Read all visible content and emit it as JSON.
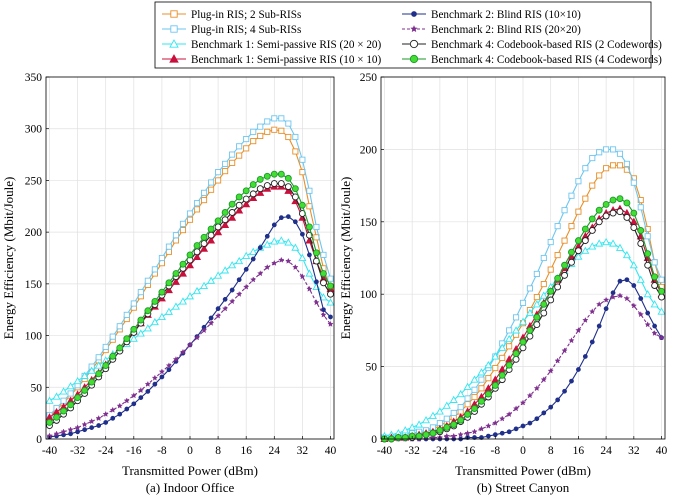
{
  "legend": {
    "entries": [
      {
        "label": "Plug-in RIS; 2 Sub-RISs",
        "color": "#E8902A",
        "marker": "square",
        "fill": "none",
        "dash": "",
        "col": 0,
        "row": 0
      },
      {
        "label": "Plug-in RIS; 4 Sub-RISs",
        "color": "#6EC6F0",
        "marker": "square",
        "fill": "none",
        "dash": "",
        "col": 0,
        "row": 1
      },
      {
        "label": "Benchmark 1: Semi-passive RIS (20 × 20)",
        "color": "#33E6F0",
        "marker": "triangle",
        "fill": "none",
        "dash": "",
        "col": 0,
        "row": 2
      },
      {
        "label": "Benchmark 1: Semi-passive RIS (10 × 10)",
        "color": "#C8103C",
        "marker": "triangle",
        "fill": "#C8103C",
        "dash": "",
        "col": 0,
        "row": 3
      },
      {
        "label": "Benchmark 2: Blind RIS (10×10)",
        "color": "#1F2F8A",
        "marker": "dot",
        "fill": "#1F2F8A",
        "dash": "",
        "col": 1,
        "row": 0
      },
      {
        "label": "Benchmark 2: Blind RIS (20×20)",
        "color": "#7E2F8E",
        "marker": "star",
        "fill": "#7E2F8E",
        "dash": "3,2",
        "col": 1,
        "row": 1
      },
      {
        "label": "Benchmark 4: Codebook-based RIS (2 Codewords)",
        "color": "#222222",
        "marker": "circle",
        "fill": "none",
        "dash": "",
        "col": 1,
        "row": 2
      },
      {
        "label": "Benchmark 4: Codebook-based RIS (4 Codewords)",
        "color": "#1A9A2A",
        "marker": "circle",
        "fill": "#44DD33",
        "dash": "",
        "col": 1,
        "row": 3
      }
    ]
  },
  "chart_data": [
    {
      "type": "line",
      "caption": "(a) Indoor Office",
      "xlabel": "Transmitted Power (dBm)",
      "ylabel": "Energy Efficiency (Mbit/Joule)",
      "xlim": [
        -41,
        41
      ],
      "ylim": [
        0,
        350
      ],
      "xticks": [
        -40,
        -32,
        -24,
        -16,
        -8,
        0,
        8,
        16,
        24,
        32,
        40
      ],
      "yticks": [
        0,
        50,
        100,
        150,
        200,
        250,
        300,
        350
      ],
      "grid": true,
      "x": [
        -40,
        -38,
        -36,
        -34,
        -32,
        -30,
        -28,
        -26,
        -24,
        -22,
        -20,
        -18,
        -16,
        -14,
        -12,
        -10,
        -8,
        -6,
        -4,
        -2,
        0,
        2,
        4,
        6,
        8,
        10,
        12,
        14,
        16,
        18,
        20,
        22,
        24,
        26,
        28,
        30,
        32,
        34,
        36,
        38,
        40
      ],
      "series": [
        {
          "name": "Plug-in RIS; 2 Sub-RISs",
          "values": [
            22,
            28,
            35,
            42,
            50,
            58,
            67,
            76,
            86,
            96,
            106,
            116,
            127,
            138,
            149,
            160,
            170,
            181,
            192,
            202,
            212,
            222,
            231,
            241,
            250,
            259,
            267,
            274,
            281,
            288,
            293,
            297,
            299,
            298,
            292,
            278,
            258,
            225,
            195,
            165,
            145
          ]
        },
        {
          "name": "Plug-in RIS; 4 Sub-RISs",
          "values": [
            23,
            30,
            37,
            44,
            52,
            61,
            70,
            79,
            89,
            99,
            109,
            120,
            131,
            142,
            153,
            164,
            175,
            186,
            197,
            208,
            218,
            228,
            238,
            248,
            258,
            266,
            275,
            283,
            290,
            297,
            302,
            307,
            310,
            310,
            305,
            292,
            270,
            240,
            205,
            178,
            155
          ]
        },
        {
          "name": "Benchmark 1: Semi-passive RIS (20 × 20)",
          "values": [
            37,
            41,
            46,
            51,
            56,
            61,
            66,
            71,
            76,
            82,
            87,
            92,
            97,
            102,
            107,
            113,
            118,
            123,
            128,
            133,
            138,
            143,
            148,
            153,
            158,
            163,
            168,
            172,
            177,
            181,
            185,
            188,
            191,
            192,
            190,
            185,
            175,
            160,
            147,
            137,
            132
          ]
        },
        {
          "name": "Benchmark 1: Semi-passive RIS (10 × 10)",
          "values": [
            21,
            26,
            31,
            37,
            43,
            50,
            57,
            64,
            72,
            80,
            88,
            96,
            104,
            112,
            120,
            128,
            136,
            144,
            152,
            160,
            168,
            176,
            184,
            192,
            200,
            207,
            214,
            221,
            227,
            233,
            238,
            242,
            244,
            244,
            240,
            230,
            214,
            192,
            172,
            155,
            145
          ]
        },
        {
          "name": "Benchmark 2: Blind RIS (10×10)",
          "values": [
            2,
            3,
            4,
            5,
            7,
            9,
            11,
            13,
            16,
            20,
            24,
            29,
            34,
            40,
            46,
            53,
            60,
            67,
            75,
            83,
            91,
            99,
            108,
            117,
            126,
            135,
            144,
            154,
            164,
            174,
            185,
            196,
            207,
            214,
            215,
            210,
            198,
            178,
            152,
            125,
            118
          ]
        },
        {
          "name": "Benchmark 2: Blind RIS (20×20)",
          "values": [
            3,
            5,
            7,
            9,
            11,
            14,
            17,
            20,
            24,
            28,
            32,
            37,
            42,
            47,
            53,
            59,
            65,
            71,
            77,
            84,
            91,
            98,
            105,
            112,
            119,
            126,
            133,
            140,
            147,
            154,
            160,
            166,
            170,
            173,
            172,
            166,
            157,
            145,
            132,
            120,
            111
          ]
        },
        {
          "name": "Benchmark 4: Codebook-based RIS (2 Codewords)",
          "values": [
            13,
            18,
            24,
            30,
            37,
            44,
            52,
            60,
            68,
            77,
            85,
            94,
            103,
            112,
            121,
            130,
            139,
            148,
            157,
            165,
            173,
            181,
            189,
            197,
            205,
            212,
            219,
            226,
            232,
            237,
            242,
            245,
            247,
            247,
            244,
            234,
            218,
            197,
            172,
            151,
            140
          ]
        },
        {
          "name": "Benchmark 4: Codebook-based RIS (4 Codewords)",
          "values": [
            16,
            21,
            27,
            33,
            40,
            47,
            55,
            63,
            71,
            80,
            88,
            97,
            106,
            115,
            124,
            133,
            142,
            151,
            160,
            169,
            178,
            187,
            195,
            203,
            211,
            219,
            227,
            234,
            240,
            246,
            251,
            254,
            256,
            256,
            252,
            242,
            226,
            205,
            180,
            160,
            148
          ]
        }
      ]
    },
    {
      "type": "line",
      "caption": "(b) Street Canyon",
      "xlabel": "Transmitted Power (dBm)",
      "ylabel": "Energy Efficiency (Mbit/Joule)",
      "xlim": [
        -41,
        41
      ],
      "ylim": [
        0,
        250
      ],
      "xticks": [
        -40,
        -32,
        -24,
        -16,
        -8,
        0,
        8,
        16,
        24,
        32,
        40
      ],
      "yticks": [
        0,
        50,
        100,
        150,
        200,
        250
      ],
      "grid": true,
      "x": [
        -40,
        -38,
        -36,
        -34,
        -32,
        -30,
        -28,
        -26,
        -24,
        -22,
        -20,
        -18,
        -16,
        -14,
        -12,
        -10,
        -8,
        -6,
        -4,
        -2,
        0,
        2,
        4,
        6,
        8,
        10,
        12,
        14,
        16,
        18,
        20,
        22,
        24,
        26,
        28,
        30,
        32,
        34,
        36,
        38,
        40
      ],
      "series": [
        {
          "name": "Plug-in RIS; 2 Sub-RISs",
          "values": [
            1,
            1,
            2,
            2,
            3,
            4,
            5,
            7,
            9,
            12,
            15,
            19,
            24,
            29,
            35,
            42,
            49,
            56,
            64,
            72,
            80,
            89,
            98,
            107,
            117,
            127,
            137,
            147,
            157,
            166,
            175,
            182,
            187,
            189,
            189,
            186,
            180,
            165,
            145,
            122,
            105
          ]
        },
        {
          "name": "Plug-in RIS; 4 Sub-RISs",
          "values": [
            1,
            1,
            2,
            3,
            4,
            5,
            6,
            8,
            11,
            14,
            18,
            22,
            28,
            34,
            41,
            49,
            57,
            66,
            75,
            84,
            94,
            104,
            114,
            125,
            136,
            147,
            158,
            168,
            178,
            187,
            194,
            198,
            200,
            200,
            197,
            190,
            177,
            160,
            140,
            122,
            110
          ]
        },
        {
          "name": "Benchmark 1: Semi-passive RIS (20 × 20)",
          "values": [
            2,
            3,
            4,
            6,
            8,
            10,
            13,
            16,
            19,
            23,
            27,
            31,
            36,
            41,
            46,
            51,
            57,
            63,
            69,
            75,
            81,
            87,
            93,
            99,
            105,
            111,
            116,
            121,
            126,
            130,
            133,
            135,
            136,
            135,
            132,
            127,
            120,
            110,
            100,
            93,
            88
          ]
        },
        {
          "name": "Benchmark 1: Semi-passive RIS (10 × 10)",
          "values": [
            0,
            1,
            1,
            1,
            2,
            3,
            4,
            5,
            7,
            9,
            12,
            15,
            19,
            24,
            29,
            35,
            41,
            48,
            55,
            62,
            70,
            78,
            86,
            94,
            102,
            110,
            118,
            126,
            133,
            140,
            146,
            152,
            156,
            158,
            159,
            156,
            150,
            140,
            125,
            110,
            100
          ]
        },
        {
          "name": "Benchmark 2: Blind RIS (10×10)",
          "values": [
            0,
            0,
            0,
            0,
            0,
            0,
            0,
            0,
            0,
            0,
            0,
            0,
            1,
            1,
            1,
            2,
            3,
            4,
            5,
            7,
            9,
            11,
            14,
            18,
            22,
            27,
            33,
            40,
            48,
            57,
            67,
            78,
            90,
            101,
            109,
            110,
            106,
            97,
            87,
            78,
            70
          ]
        },
        {
          "name": "Benchmark 2: Blind RIS (20×20)",
          "values": [
            0,
            0,
            0,
            0,
            0,
            0,
            1,
            1,
            1,
            2,
            2,
            3,
            4,
            5,
            7,
            9,
            11,
            14,
            17,
            21,
            25,
            30,
            35,
            41,
            47,
            54,
            61,
            68,
            75,
            82,
            88,
            93,
            96,
            98,
            99,
            97,
            92,
            86,
            79,
            73,
            70
          ]
        },
        {
          "name": "Benchmark 4: Codebook-based RIS (2 Codewords)",
          "values": [
            0,
            0,
            1,
            1,
            1,
            2,
            3,
            4,
            5,
            7,
            9,
            12,
            15,
            19,
            24,
            29,
            35,
            41,
            48,
            55,
            63,
            71,
            79,
            87,
            96,
            105,
            113,
            122,
            130,
            137,
            144,
            150,
            154,
            156,
            157,
            153,
            146,
            135,
            120,
            106,
            98
          ]
        },
        {
          "name": "Benchmark 4: Codebook-based RIS (4 Codewords)",
          "values": [
            0,
            0,
            1,
            1,
            2,
            2,
            3,
            4,
            6,
            8,
            10,
            13,
            17,
            21,
            26,
            31,
            37,
            44,
            51,
            59,
            67,
            75,
            84,
            93,
            102,
            111,
            120,
            129,
            137,
            145,
            152,
            158,
            162,
            165,
            166,
            163,
            156,
            144,
            128,
            112,
            102
          ]
        }
      ]
    }
  ]
}
